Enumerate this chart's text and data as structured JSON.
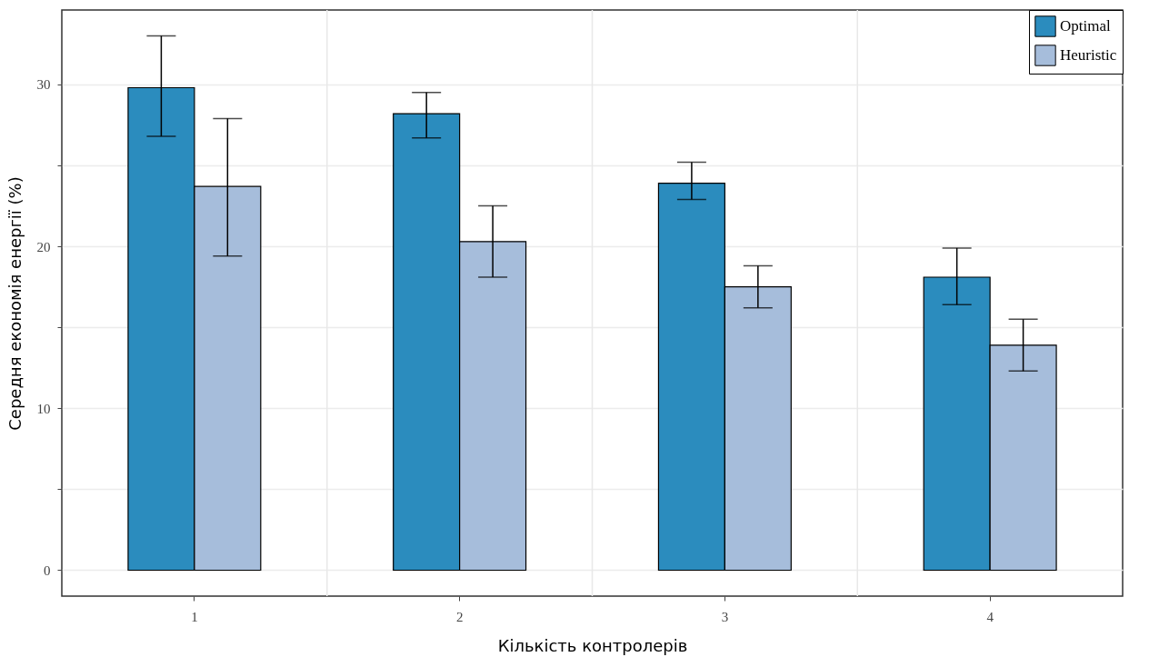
{
  "chart_data": {
    "type": "bar",
    "xlabel": "Кількість контролерів",
    "ylabel": "Середня економія енергії (%)",
    "categories": [
      "1",
      "2",
      "3",
      "4"
    ],
    "series": [
      {
        "name": "Optimal",
        "color": "#2b8cbe",
        "values": [
          29.8,
          28.2,
          23.9,
          18.1
        ],
        "errors": [
          [
            26.8,
            33.0
          ],
          [
            26.7,
            29.5
          ],
          [
            22.9,
            25.2
          ],
          [
            16.4,
            19.9
          ]
        ]
      },
      {
        "name": "Heuristic",
        "color": "#a6bddb",
        "values": [
          23.7,
          20.3,
          17.5,
          13.9
        ],
        "errors": [
          [
            19.4,
            27.9
          ],
          [
            18.1,
            22.5
          ],
          [
            16.2,
            18.8
          ],
          [
            12.3,
            15.5
          ]
        ]
      }
    ],
    "ylim": [
      -1.6,
      34.6
    ],
    "yticks": [
      0,
      {
        "value": 5,
        "label": null
      },
      10,
      {
        "value": 15,
        "label": null
      },
      20,
      {
        "value": 25,
        "label": null
      },
      30
    ],
    "grid": true,
    "legend": "top right"
  }
}
